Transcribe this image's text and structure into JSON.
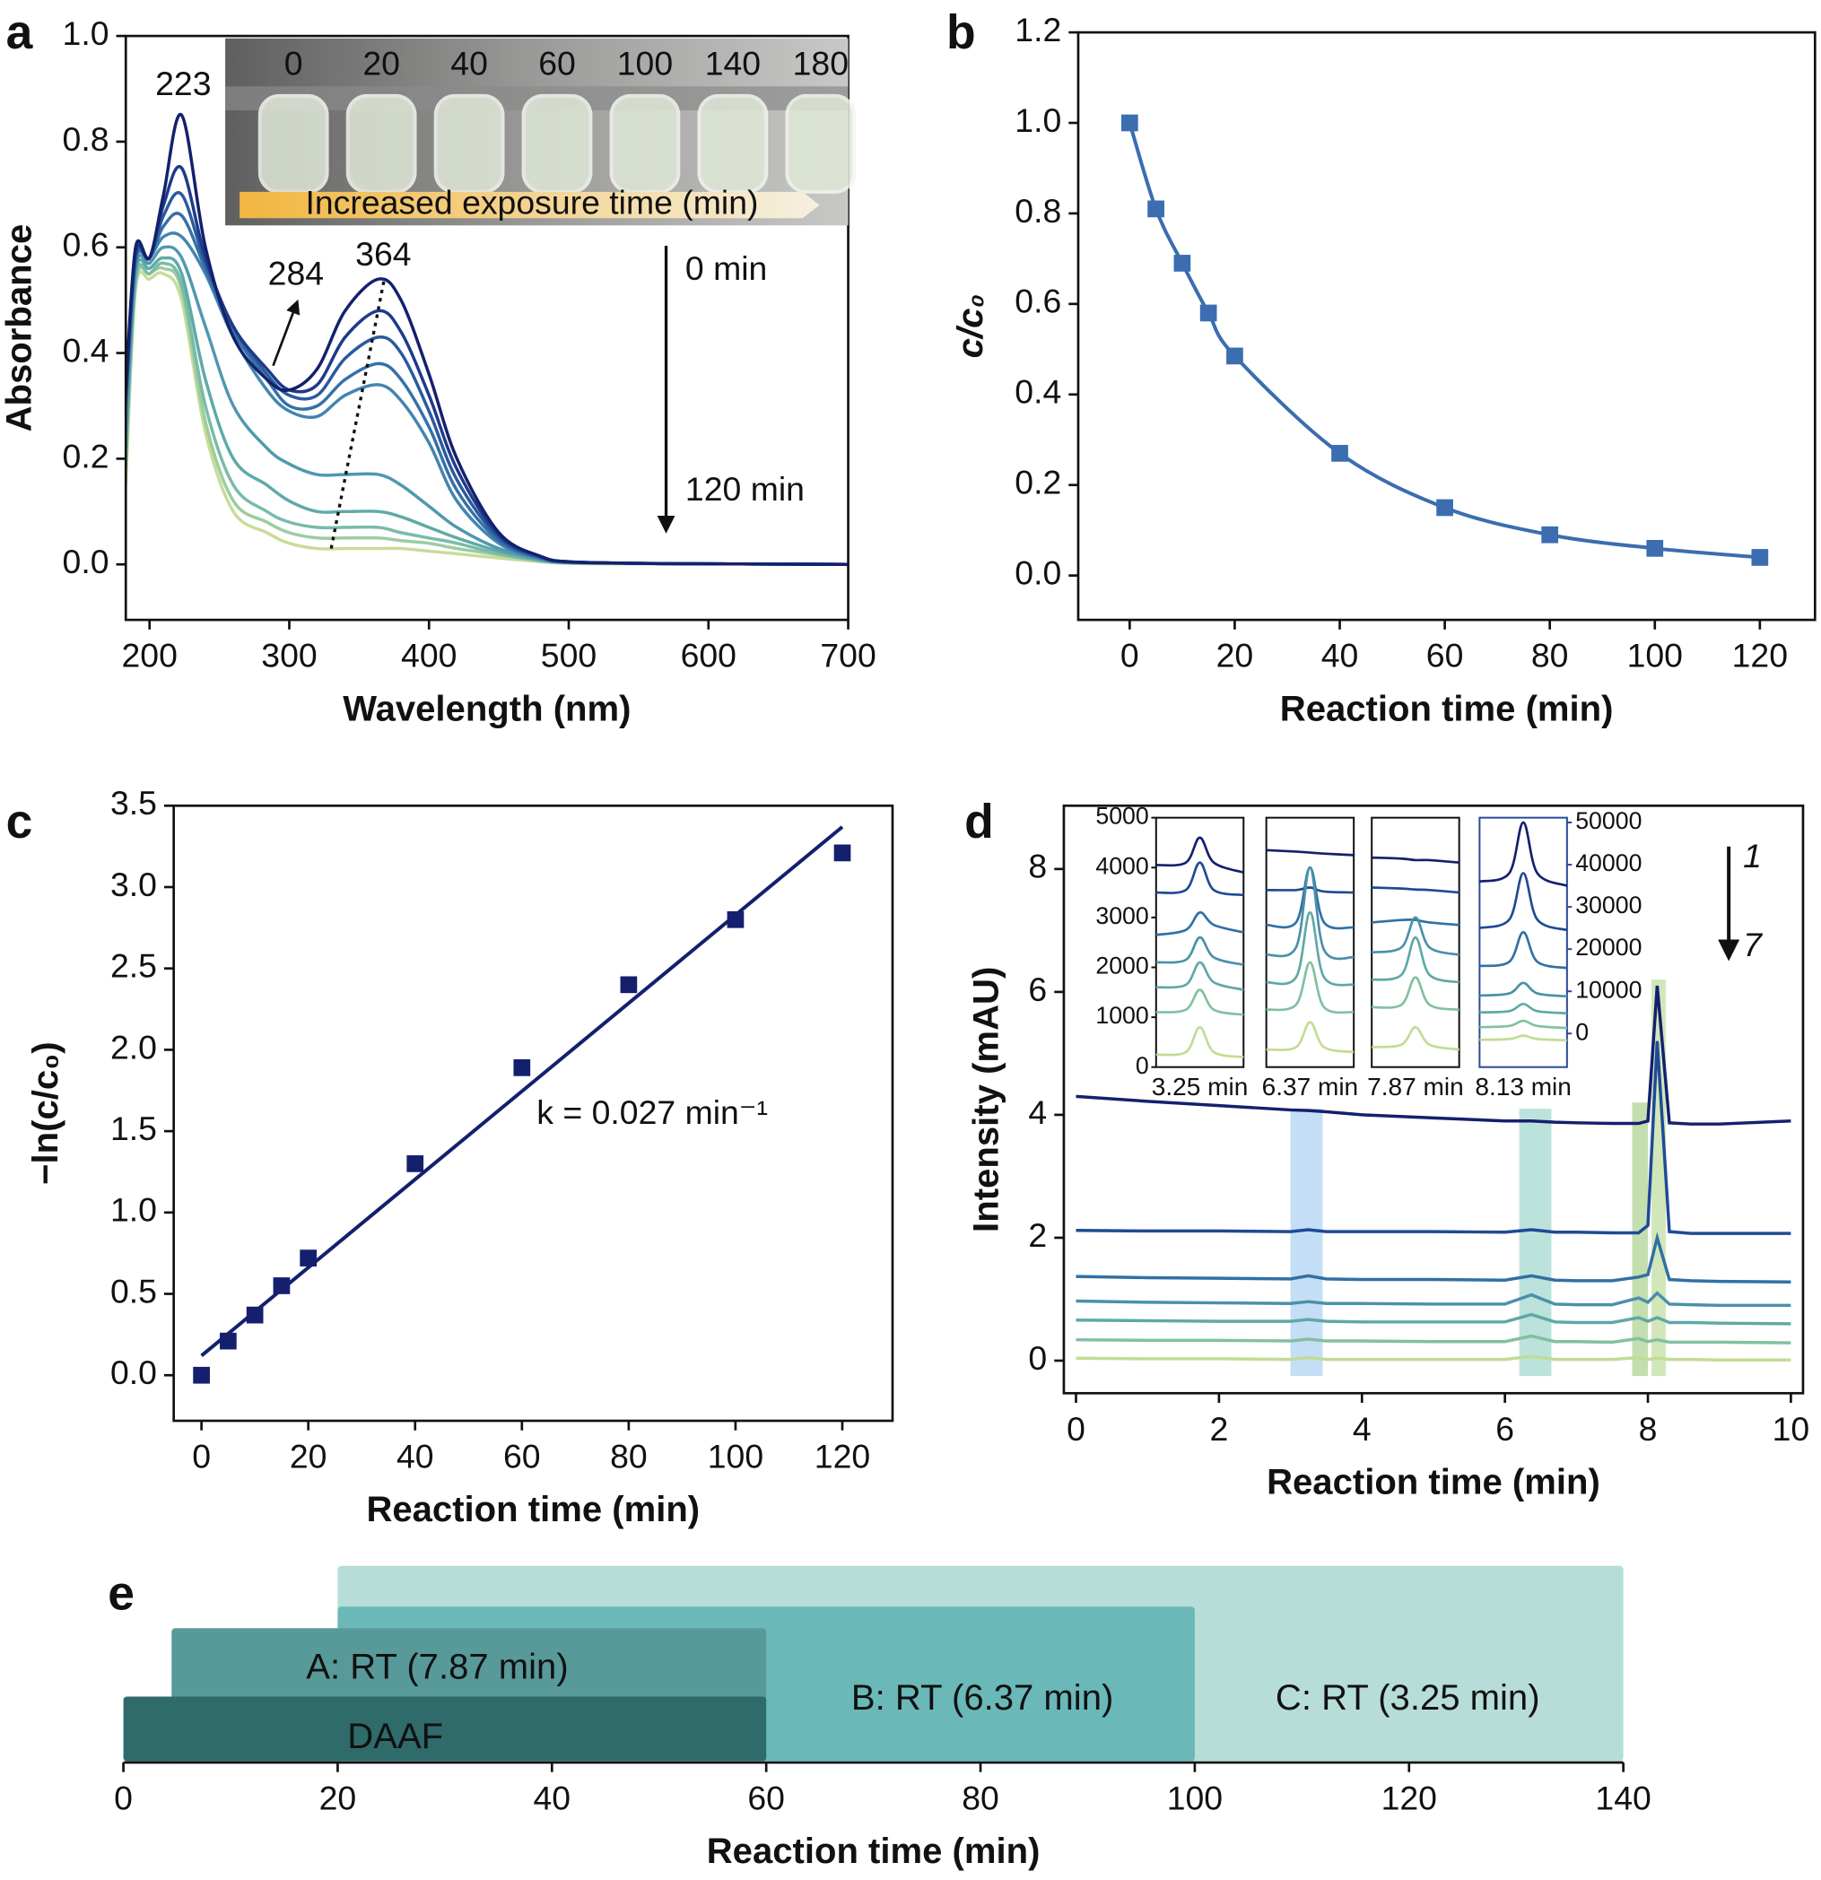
{
  "chart_data": [
    {
      "type": "spectra",
      "label": "a",
      "xlabel": "Wavelength (nm)",
      "ylabel": "Absorbance",
      "xlim": [
        183,
        700
      ],
      "ylim": [
        -0.105,
        1.0
      ],
      "xticks": [
        200,
        300,
        400,
        500,
        600,
        700
      ],
      "yticks": [
        {
          "value": 0,
          "label": "0.0"
        },
        0.2,
        0.4,
        0.6,
        0.8,
        {
          "value": 1,
          "label": "1.0"
        }
      ],
      "x": [
        183,
        190,
        200,
        210,
        223,
        240,
        260,
        284,
        300,
        320,
        340,
        364,
        380,
        400,
        420,
        450,
        480,
        500,
        550,
        600,
        700
      ],
      "series": [
        {
          "color": "#14206e",
          "values": [
            0.33,
            0.6,
            0.58,
            0.7,
            0.85,
            0.6,
            0.43,
            0.35,
            0.33,
            0.37,
            0.48,
            0.54,
            0.5,
            0.36,
            0.2,
            0.06,
            0.015,
            0.005,
            0.002,
            0.001,
            0
          ]
        },
        {
          "color": "#1e3a8a",
          "values": [
            0.32,
            0.59,
            0.58,
            0.68,
            0.75,
            0.58,
            0.45,
            0.37,
            0.33,
            0.34,
            0.43,
            0.48,
            0.44,
            0.32,
            0.18,
            0.055,
            0.015,
            0.005,
            0.002,
            0.001,
            0
          ]
        },
        {
          "color": "#2a5a9e",
          "values": [
            0.31,
            0.58,
            0.58,
            0.66,
            0.7,
            0.57,
            0.45,
            0.36,
            0.32,
            0.32,
            0.39,
            0.43,
            0.4,
            0.29,
            0.16,
            0.05,
            0.013,
            0.005,
            0.002,
            0.001,
            0
          ]
        },
        {
          "color": "#3570a8",
          "values": [
            0.3,
            0.58,
            0.58,
            0.64,
            0.66,
            0.56,
            0.44,
            0.35,
            0.3,
            0.3,
            0.35,
            0.38,
            0.35,
            0.26,
            0.14,
            0.045,
            0.012,
            0.004,
            0.002,
            0.001,
            0
          ]
        },
        {
          "color": "#4384b0",
          "values": [
            0.29,
            0.57,
            0.58,
            0.62,
            0.62,
            0.55,
            0.43,
            0.33,
            0.29,
            0.28,
            0.32,
            0.34,
            0.31,
            0.23,
            0.12,
            0.04,
            0.011,
            0.004,
            0.002,
            0.001,
            0
          ]
        },
        {
          "color": "#5098b0",
          "values": [
            0.25,
            0.56,
            0.57,
            0.6,
            0.58,
            0.45,
            0.3,
            0.22,
            0.19,
            0.17,
            0.17,
            0.17,
            0.15,
            0.11,
            0.07,
            0.03,
            0.01,
            0.004,
            0.002,
            0.001,
            0
          ]
        },
        {
          "color": "#5eaaa8",
          "values": [
            0.22,
            0.55,
            0.56,
            0.58,
            0.55,
            0.35,
            0.2,
            0.15,
            0.12,
            0.1,
            0.1,
            0.1,
            0.09,
            0.07,
            0.05,
            0.025,
            0.008,
            0.003,
            0.002,
            0.001,
            0
          ]
        },
        {
          "color": "#78bca8",
          "values": [
            0.2,
            0.54,
            0.55,
            0.57,
            0.53,
            0.3,
            0.15,
            0.1,
            0.08,
            0.07,
            0.07,
            0.07,
            0.06,
            0.05,
            0.04,
            0.02,
            0.007,
            0.003,
            0.002,
            0.001,
            0
          ]
        },
        {
          "color": "#9ccca0",
          "values": [
            0.18,
            0.53,
            0.55,
            0.56,
            0.52,
            0.27,
            0.12,
            0.08,
            0.06,
            0.05,
            0.05,
            0.05,
            0.045,
            0.04,
            0.03,
            0.018,
            0.006,
            0.003,
            0.002,
            0.001,
            0
          ]
        },
        {
          "color": "#c8dc98",
          "values": [
            0.15,
            0.52,
            0.54,
            0.55,
            0.5,
            0.25,
            0.1,
            0.06,
            0.04,
            0.03,
            0.03,
            0.03,
            0.03,
            0.025,
            0.02,
            0.012,
            0.005,
            0.002,
            0.001,
            0.001,
            0
          ]
        }
      ],
      "annotations": [
        "223",
        "284",
        "364",
        "0 min",
        "120 min"
      ],
      "inset_photo": {
        "labels": [
          "0",
          "20",
          "40",
          "60",
          "100",
          "140",
          "180"
        ],
        "caption": "Increased exposure time (min)"
      }
    },
    {
      "type": "line-marker",
      "label": "b",
      "xlabel": "Reaction time (min)",
      "ylabel": "c/c₀",
      "color": "#3b6db0",
      "xlim": [
        -9.8,
        130.5
      ],
      "ylim": [
        -0.098,
        1.2
      ],
      "xticks": [
        0,
        20,
        40,
        60,
        80,
        100,
        120
      ],
      "yticks": [
        {
          "value": 0,
          "label": "0.0"
        },
        0.2,
        0.4,
        0.6,
        0.8,
        {
          "value": 1,
          "label": "1.0"
        },
        1.2
      ],
      "x": [
        0,
        5,
        10,
        15,
        20,
        40,
        60,
        80,
        100,
        120
      ],
      "values": [
        1.0,
        0.81,
        0.69,
        0.58,
        0.485,
        0.27,
        0.15,
        0.09,
        0.06,
        0.04
      ]
    },
    {
      "type": "scatter-fit",
      "label": "c",
      "xlabel": "Reaction time (min)",
      "ylabel": "−ln(c/c₀)",
      "color": "#14206e",
      "xlim": [
        -5.2,
        129.4
      ],
      "ylim": [
        -0.28,
        3.5
      ],
      "xticks": [
        0,
        20,
        40,
        60,
        80,
        100,
        120
      ],
      "yticks": [
        {
          "value": 0,
          "label": "0.0"
        },
        0.5,
        {
          "value": 1,
          "label": "1.0"
        },
        1.5,
        {
          "value": 2,
          "label": "2.0"
        },
        2.5,
        {
          "value": 3,
          "label": "3.0"
        },
        3.5
      ],
      "x": [
        0,
        5,
        10,
        15,
        20,
        40,
        60,
        80,
        100,
        120
      ],
      "values": [
        0,
        0.21,
        0.37,
        0.55,
        0.72,
        1.3,
        1.89,
        2.4,
        2.8,
        3.21
      ],
      "fit": {
        "x": [
          0,
          120
        ],
        "values": [
          0.12,
          3.37
        ]
      },
      "annotations": [
        "k = 0.027 min⁻¹"
      ]
    },
    {
      "type": "chromatogram",
      "label": "d",
      "xlabel": "Reaction time (min)",
      "ylabel": "Intensity (mAU)",
      "xlim": [
        -0.17,
        10.17
      ],
      "ylim": [
        -0.53,
        9.03
      ],
      "xticks": [
        0,
        2,
        4,
        6,
        8,
        10
      ],
      "yticks": [
        0,
        2,
        4,
        6,
        8
      ],
      "x": [
        0,
        1,
        2,
        3,
        3.25,
        3.5,
        4,
        5,
        6,
        6.37,
        6.7,
        7,
        7.5,
        7.87,
        8.0,
        8.13,
        8.3,
        8.6,
        9,
        10
      ],
      "series": [
        {
          "color": "#14206e",
          "values": [
            4.3,
            4.22,
            4.15,
            4.08,
            4.07,
            4.05,
            4.0,
            3.95,
            3.9,
            3.9,
            3.88,
            3.87,
            3.86,
            3.86,
            3.9,
            6.1,
            3.87,
            3.85,
            3.85,
            3.9
          ]
        },
        {
          "color": "#1f4a96",
          "values": [
            2.12,
            2.11,
            2.11,
            2.1,
            2.13,
            2.1,
            2.1,
            2.1,
            2.09,
            2.13,
            2.09,
            2.09,
            2.08,
            2.08,
            2.2,
            5.2,
            2.1,
            2.07,
            2.07,
            2.07
          ]
        },
        {
          "color": "#3170a4",
          "values": [
            1.37,
            1.35,
            1.34,
            1.33,
            1.38,
            1.33,
            1.32,
            1.32,
            1.31,
            1.38,
            1.31,
            1.3,
            1.3,
            1.36,
            1.4,
            2.0,
            1.32,
            1.3,
            1.29,
            1.28
          ]
        },
        {
          "color": "#4a90aa",
          "values": [
            0.97,
            0.95,
            0.94,
            0.93,
            0.96,
            0.93,
            0.93,
            0.92,
            0.92,
            1.07,
            0.92,
            0.91,
            0.91,
            1.02,
            0.95,
            1.1,
            0.92,
            0.91,
            0.9,
            0.9
          ]
        },
        {
          "color": "#5fa8a6",
          "values": [
            0.66,
            0.65,
            0.64,
            0.64,
            0.67,
            0.64,
            0.63,
            0.63,
            0.63,
            0.75,
            0.63,
            0.62,
            0.62,
            0.7,
            0.64,
            0.7,
            0.62,
            0.62,
            0.61,
            0.6
          ]
        },
        {
          "color": "#82c0a0",
          "values": [
            0.34,
            0.33,
            0.33,
            0.32,
            0.35,
            0.32,
            0.32,
            0.31,
            0.31,
            0.4,
            0.31,
            0.31,
            0.3,
            0.36,
            0.31,
            0.34,
            0.3,
            0.3,
            0.3,
            0.29
          ]
        },
        {
          "color": "#c2dc94",
          "values": [
            0.04,
            0.03,
            0.03,
            0.02,
            0.05,
            0.02,
            0.02,
            0.02,
            0.02,
            0.07,
            0.02,
            0.02,
            0.02,
            0.05,
            0.02,
            0.04,
            0.02,
            0.02,
            0.01,
            0.01
          ]
        }
      ],
      "bands": [
        {
          "x": [
            3.0,
            3.45
          ],
          "y": [
            -0.25,
            4.1
          ],
          "color": "#9cc8f0"
        },
        {
          "x": [
            6.2,
            6.65
          ],
          "y": [
            -0.25,
            4.1
          ],
          "color": "#8fcfc4"
        },
        {
          "x": [
            7.78,
            8.0
          ],
          "y": [
            -0.25,
            4.2
          ],
          "color": "#9cc87c"
        },
        {
          "x": [
            8.05,
            8.25
          ],
          "y": [
            -0.25,
            6.2
          ],
          "color": "#b2d78a"
        }
      ],
      "annotations": [
        "1",
        "7"
      ],
      "insets": [
        {
          "xlabel": "3.25 min",
          "xlim": [
            3.0,
            3.5
          ],
          "ylim": [
            0,
            5000
          ],
          "yticks": [
            0,
            1000,
            2000,
            3000,
            4000,
            5000
          ],
          "x": [
            3.0,
            3.17,
            3.25,
            3.33,
            3.5
          ],
          "series": [
            [
              4050,
              4100,
              4600,
              4100,
              3900
            ],
            [
              3500,
              3550,
              4100,
              3550,
              3450
            ],
            [
              2650,
              2750,
              3100,
              2850,
              2700
            ],
            [
              2100,
              2150,
              2600,
              2200,
              2050
            ],
            [
              1600,
              1650,
              2100,
              1700,
              1550
            ],
            [
              1100,
              1150,
              1550,
              1150,
              1050
            ],
            [
              250,
              300,
              800,
              300,
              200
            ]
          ]
        },
        {
          "xlabel": "6.37 min",
          "xlim": [
            6.12,
            6.62
          ],
          "ylim": [
            0,
            5000
          ],
          "x": [
            6.12,
            6.29,
            6.37,
            6.45,
            6.62
          ],
          "series": [
            [
              4350,
              4320,
              4300,
              4280,
              4250
            ],
            [
              3550,
              3550,
              3600,
              3520,
              3500
            ],
            [
              2850,
              2900,
              4000,
              2900,
              2800
            ],
            [
              2250,
              2400,
              4000,
              2350,
              2200
            ],
            [
              1700,
              1800,
              3100,
              1800,
              1650
            ],
            [
              1150,
              1250,
              2100,
              1200,
              1100
            ],
            [
              350,
              400,
              900,
              400,
              300
            ]
          ]
        },
        {
          "xlabel": "7.87 min",
          "xlim": [
            7.62,
            8.12
          ],
          "ylim": [
            0,
            5000
          ],
          "x": [
            7.62,
            7.79,
            7.87,
            7.95,
            8.12
          ],
          "series": [
            [
              4200,
              4180,
              4150,
              4150,
              4100
            ],
            [
              3600,
              3580,
              3560,
              3550,
              3500
            ],
            [
              2900,
              2950,
              2950,
              2900,
              2850
            ],
            [
              2300,
              2400,
              3000,
              2400,
              2250
            ],
            [
              1750,
              1850,
              2600,
              1850,
              1700
            ],
            [
              1200,
              1250,
              1800,
              1250,
              1150
            ],
            [
              400,
              450,
              800,
              450,
              350
            ]
          ]
        },
        {
          "xlabel": "8.13 min",
          "xlim": [
            7.88,
            8.38
          ],
          "ylim": [
            -7955,
            51136
          ],
          "yticks": [
            0,
            10000,
            20000,
            30000,
            40000,
            50000
          ],
          "x": [
            7.88,
            8.05,
            8.13,
            8.21,
            8.38
          ],
          "series": [
            [
              36000,
              38000,
              50000,
              38000,
              35000
            ],
            [
              25000,
              27000,
              38000,
              27000,
              24500
            ],
            [
              16000,
              17000,
              24000,
              17000,
              15500
            ],
            [
              9000,
              9500,
              12000,
              9500,
              8800
            ],
            [
              5000,
              5300,
              7000,
              5300,
              4800
            ],
            [
              1500,
              1800,
              3000,
              1800,
              1300
            ],
            [
              -1500,
              -1300,
              -500,
              -1300,
              -1600
            ]
          ]
        }
      ]
    },
    {
      "type": "range-bar",
      "label": "e",
      "xlabel": "Reaction time (min)",
      "xlim": [
        0,
        140
      ],
      "xticks": [
        0,
        20,
        40,
        60,
        80,
        100,
        120,
        140
      ],
      "bars": [
        {
          "label": "C: RT (3.25 min)",
          "start": 20,
          "end": 140,
          "color": "#b6ddd8"
        },
        {
          "label": "B: RT (6.37 min)",
          "start": 20,
          "end": 100,
          "color": "#6ab8b8"
        },
        {
          "label": "A: RT (7.87 min)",
          "start": 4.5,
          "end": 60,
          "color": "#58999a"
        },
        {
          "label": "DAAF",
          "start": 0,
          "end": 60,
          "color": "#2e6b6a"
        }
      ]
    }
  ]
}
